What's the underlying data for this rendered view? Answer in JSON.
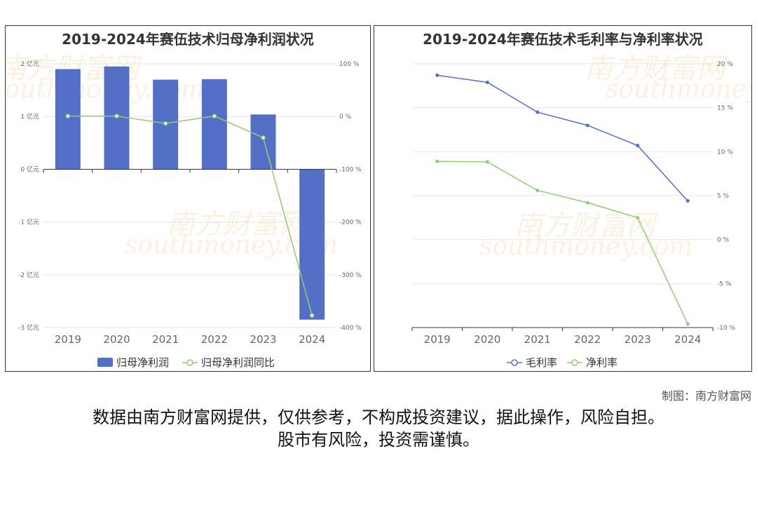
{
  "footer": {
    "credit": "制图：南方财富网",
    "disclaimer_line1": "数据由南方财富网提供，仅供参考，不构成投资建议，据此操作，风险自担。",
    "disclaimer_line2": "股市有风险，投资需谨慎。"
  },
  "watermark": {
    "text_cn": "南方财富网",
    "text_en": "southmoney.com",
    "color": "#f0aa5a"
  },
  "chart_data": [
    {
      "type": "bar+line",
      "title": "2019-2024年赛伍技术归母净利润状况",
      "categories": [
        "2019",
        "2020",
        "2021",
        "2022",
        "2023",
        "2024"
      ],
      "left_axis": {
        "unit": "亿元",
        "ylim": [
          -3,
          2
        ],
        "ticks": [
          2,
          1,
          0,
          -1,
          -2,
          -3
        ],
        "tick_labels": [
          "2 亿元",
          "1 亿元",
          "0 亿元",
          "-1 亿元",
          "-2 亿元",
          "-3 亿元"
        ]
      },
      "right_axis": {
        "unit": "%",
        "ylim": [
          -400,
          100
        ],
        "ticks": [
          100,
          0,
          -100,
          -200,
          -300,
          -400
        ],
        "tick_labels": [
          "100 %",
          "0 %",
          "-100 %",
          "-200 %",
          "-300 %",
          "-400 %"
        ]
      },
      "series": [
        {
          "name": "归母净利润",
          "kind": "bar",
          "axis": "left",
          "color": "#5470c6",
          "values": [
            1.9,
            1.95,
            1.7,
            1.71,
            1.04,
            -2.85
          ]
        },
        {
          "name": "归母净利润同比",
          "kind": "line",
          "axis": "right",
          "color": "#91cc75",
          "values": [
            1,
            1,
            -13,
            1,
            -40,
            -377
          ]
        }
      ],
      "legend": "bottom-center",
      "grid": true
    },
    {
      "type": "line",
      "title": "2019-2024年赛伍技术毛利率与净利率状况",
      "categories": [
        "2019",
        "2020",
        "2021",
        "2022",
        "2023",
        "2024"
      ],
      "right_axis": {
        "unit": "%",
        "ylim": [
          -10,
          20
        ],
        "ticks": [
          20,
          15,
          10,
          5,
          0,
          -5,
          -10
        ],
        "tick_labels": [
          "20 %",
          "15 %",
          "10 %",
          "5 %",
          "0 %",
          "-5 %",
          "-10 %"
        ]
      },
      "series": [
        {
          "name": "毛利率",
          "color": "#5470c6",
          "values": [
            18.7,
            17.9,
            14.5,
            13.0,
            10.7,
            4.4
          ]
        },
        {
          "name": "净利率",
          "color": "#91cc75",
          "values": [
            8.9,
            8.85,
            5.6,
            4.2,
            2.5,
            -9.6
          ]
        }
      ],
      "legend": "bottom-center",
      "grid": true
    }
  ]
}
